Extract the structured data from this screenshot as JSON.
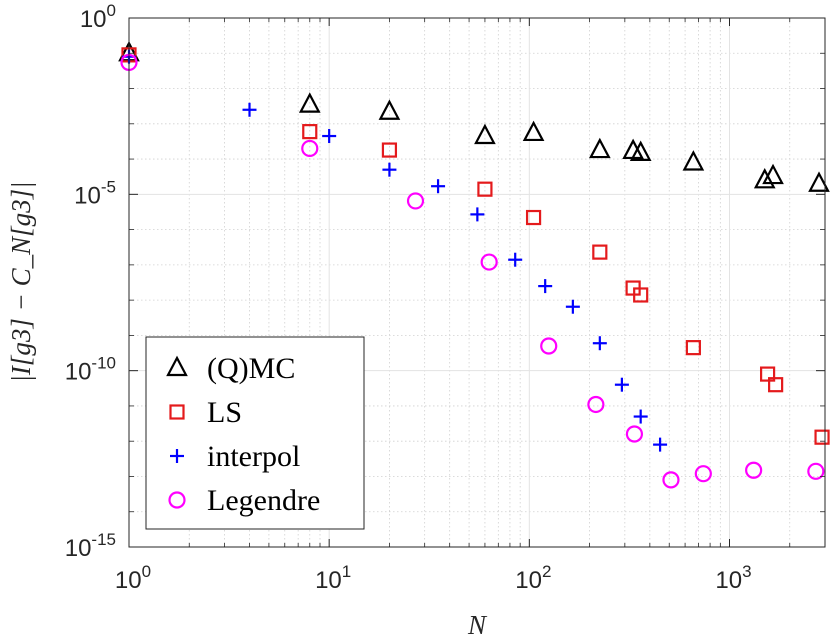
{
  "chart_data": {
    "type": "scatter",
    "title": "",
    "xlabel": "N",
    "ylabel": "|I[g3] − C_N[g3]|",
    "xscale": "log",
    "yscale": "log",
    "xlim": [
      1,
      3000
    ],
    "ylim": [
      1e-15,
      1
    ],
    "grid": true,
    "legend_position": "bottom-left",
    "x_ticks": [
      {
        "value": 1,
        "base": "10",
        "exp": "0"
      },
      {
        "value": 10,
        "base": "10",
        "exp": "1"
      },
      {
        "value": 100,
        "base": "10",
        "exp": "2"
      },
      {
        "value": 1000,
        "base": "10",
        "exp": "3"
      }
    ],
    "y_ticks": [
      {
        "value": 1,
        "base": "10",
        "exp": "0"
      },
      {
        "value": 1e-05,
        "base": "10",
        "exp": "-5"
      },
      {
        "value": 1e-10,
        "base": "10",
        "exp": "-10"
      },
      {
        "value": 1e-15,
        "base": "10",
        "exp": "-15"
      }
    ],
    "series": [
      {
        "name": "(Q)MC",
        "marker": "triangle",
        "color": "#000000",
        "points": [
          [
            1,
            0.1
          ],
          [
            8,
            0.0035
          ],
          [
            20,
            0.0022
          ],
          [
            60,
            0.00045
          ],
          [
            105,
            0.00055
          ],
          [
            225,
            0.00018
          ],
          [
            330,
            0.00017
          ],
          [
            360,
            0.00015
          ],
          [
            660,
            8e-05
          ],
          [
            1500,
            2.5e-05
          ],
          [
            1650,
            3.3e-05
          ],
          [
            2800,
            2e-05
          ]
        ]
      },
      {
        "name": "LS",
        "marker": "square",
        "color": "#e41a1c",
        "points": [
          [
            1,
            0.09
          ],
          [
            8,
            0.0006
          ],
          [
            20,
            0.00018
          ],
          [
            60,
            1.4e-05
          ],
          [
            105,
            2.2e-06
          ],
          [
            225,
            2.3e-07
          ],
          [
            330,
            2.2e-08
          ],
          [
            360,
            1.4e-08
          ],
          [
            660,
            4.5e-10
          ],
          [
            1550,
            8e-11
          ],
          [
            1700,
            4e-11
          ],
          [
            2900,
            1.3e-12
          ]
        ]
      },
      {
        "name": "interpol",
        "marker": "plus",
        "color": "#0000ff",
        "points": [
          [
            1,
            0.08
          ],
          [
            4,
            0.0025
          ],
          [
            10,
            0.00045
          ],
          [
            20,
            5e-05
          ],
          [
            35,
            1.7e-05
          ],
          [
            55,
            2.7e-06
          ],
          [
            85,
            1.4e-07
          ],
          [
            120,
            2.5e-08
          ],
          [
            165,
            6.5e-09
          ],
          [
            225,
            6e-10
          ],
          [
            290,
            4e-11
          ],
          [
            360,
            5e-12
          ],
          [
            450,
            8e-13
          ]
        ]
      },
      {
        "name": "Legendre",
        "marker": "circle",
        "color": "#ff00ff",
        "points": [
          [
            1,
            0.055
          ],
          [
            8,
            0.0002
          ],
          [
            27,
            6.5e-06
          ],
          [
            63,
            1.2e-07
          ],
          [
            125,
            5e-10
          ],
          [
            215,
            1.1e-11
          ],
          [
            335,
            1.6e-12
          ],
          [
            510,
            8e-14
          ],
          [
            740,
            1.2e-13
          ],
          [
            1320,
            1.5e-13
          ],
          [
            2700,
            1.4e-13
          ]
        ]
      }
    ]
  }
}
